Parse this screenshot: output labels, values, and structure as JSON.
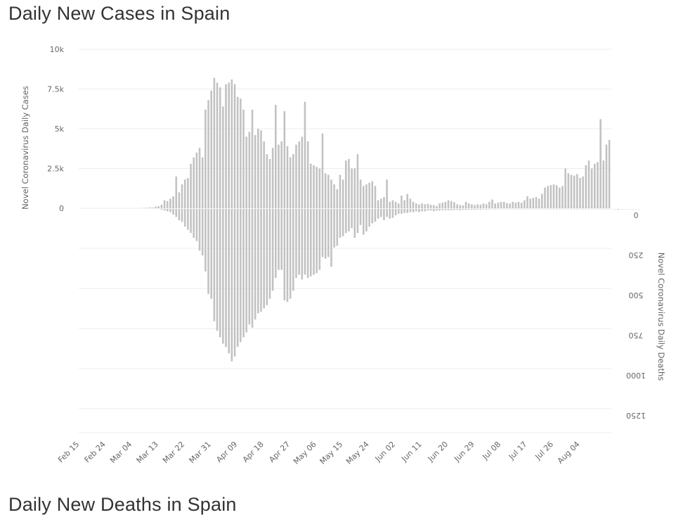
{
  "page": {
    "title": "Daily New Cases in Spain",
    "next_title": "Daily New Deaths in Spain"
  },
  "chart_data": {
    "type": "bar",
    "title": "Daily New Cases in Spain",
    "x_start": "2020-02-15",
    "x_end": "2020-08-08",
    "x_tick_labels": [
      "Feb 15",
      "Feb 24",
      "Mar 04",
      "Mar 13",
      "Mar 22",
      "Mar 31",
      "Apr 09",
      "Apr 18",
      "Apr 27",
      "May 06",
      "May 15",
      "May 24",
      "Jun 02",
      "Jun 11",
      "Jun 20",
      "Jun 29",
      "Jul 08",
      "Jul 17",
      "Jul 26",
      "Aug 04"
    ],
    "y_left": {
      "label": "Novel Coronavirus Daily Cases",
      "ticks": [
        "0",
        "2.5k",
        "5k",
        "7.5k",
        "10k"
      ],
      "range": [
        0,
        10000
      ]
    },
    "y_right": {
      "label": "Novel Coronavirus Daily Deaths",
      "ticks": [
        "0",
        "250",
        "500",
        "750",
        "1000",
        "1250"
      ],
      "range": [
        0,
        1250
      ],
      "inverted": true
    },
    "grid": true,
    "series": [
      {
        "axis": "left",
        "values": [
          0,
          0,
          0,
          0,
          0,
          0,
          0,
          0,
          0,
          0,
          0,
          0,
          0,
          0,
          0,
          0,
          0,
          0,
          0,
          0,
          0,
          10,
          15,
          25,
          50,
          40,
          100,
          130,
          220,
          500,
          450,
          600,
          750,
          2000,
          1000,
          1500,
          1800,
          1900,
          2800,
          3200,
          3500,
          3800,
          3200,
          6200,
          6800,
          7400,
          8200,
          7900,
          7600,
          6400,
          7800,
          7900,
          8100,
          7800,
          7000,
          6900,
          6200,
          4500,
          4800,
          6200,
          4600,
          5000,
          4900,
          4200,
          3400,
          3100,
          3800,
          6500,
          4000,
          4200,
          6100,
          3900,
          3200,
          3400,
          4000,
          4200,
          4500,
          6700,
          4200,
          2800,
          2700,
          2600,
          2500,
          4700,
          2200,
          2100,
          1800,
          1500,
          1200,
          2100,
          1800,
          3000,
          3100,
          2500,
          2500,
          3400,
          1800,
          1400,
          1500,
          1600,
          1700,
          1400,
          500,
          600,
          700,
          1800,
          400,
          500,
          400,
          300,
          800,
          500,
          900,
          600,
          400,
          300,
          250,
          300,
          250,
          280,
          220,
          200,
          150,
          300,
          350,
          400,
          500,
          450,
          380,
          250,
          200,
          180,
          400,
          300,
          250,
          200,
          250,
          220,
          300,
          250,
          400,
          550,
          300,
          350,
          400,
          400,
          320,
          300,
          400,
          350,
          400,
          350,
          500,
          750,
          600,
          650,
          700,
          600,
          900,
          1300,
          1400,
          1450,
          1500,
          1450,
          1300,
          1400,
          2500,
          2200,
          2100,
          2050,
          2150,
          1900,
          2000,
          2700,
          3000,
          2500,
          2800,
          2900,
          5600,
          3000,
          4000,
          4300
        ]
      },
      {
        "axis": "right",
        "values": [
          0,
          0,
          0,
          0,
          0,
          0,
          0,
          0,
          0,
          0,
          0,
          0,
          0,
          0,
          0,
          0,
          0,
          0,
          0,
          0,
          0,
          0,
          0,
          0,
          0,
          0,
          0,
          0,
          5,
          10,
          15,
          20,
          35,
          50,
          70,
          80,
          110,
          130,
          150,
          180,
          200,
          260,
          290,
          390,
          530,
          560,
          700,
          760,
          800,
          840,
          860,
          900,
          950,
          920,
          860,
          830,
          800,
          770,
          720,
          740,
          690,
          650,
          640,
          620,
          600,
          560,
          510,
          430,
          380,
          380,
          570,
          580,
          560,
          510,
          430,
          410,
          440,
          410,
          430,
          420,
          410,
          400,
          380,
          300,
          310,
          300,
          360,
          240,
          230,
          180,
          170,
          150,
          140,
          120,
          180,
          150,
          100,
          160,
          140,
          110,
          90,
          80,
          60,
          50,
          70,
          50,
          60,
          55,
          40,
          30,
          30,
          25,
          25,
          20,
          20,
          15,
          20,
          15,
          15,
          10,
          10,
          15,
          10,
          10,
          8,
          8,
          8,
          8,
          7,
          6,
          8,
          5,
          6,
          5,
          5,
          4,
          4,
          4,
          3,
          3,
          3,
          2,
          2,
          2,
          2,
          2,
          2,
          2,
          2,
          2,
          2,
          2,
          2,
          2,
          2,
          2,
          2,
          2,
          2,
          2,
          2,
          2,
          2,
          2,
          2,
          2,
          2,
          2,
          2,
          2,
          2,
          2,
          2,
          2,
          2,
          2,
          2,
          2,
          2,
          2,
          2,
          2,
          2,
          2,
          4,
          2,
          2,
          2,
          2,
          2,
          2,
          2
        ]
      }
    ]
  }
}
